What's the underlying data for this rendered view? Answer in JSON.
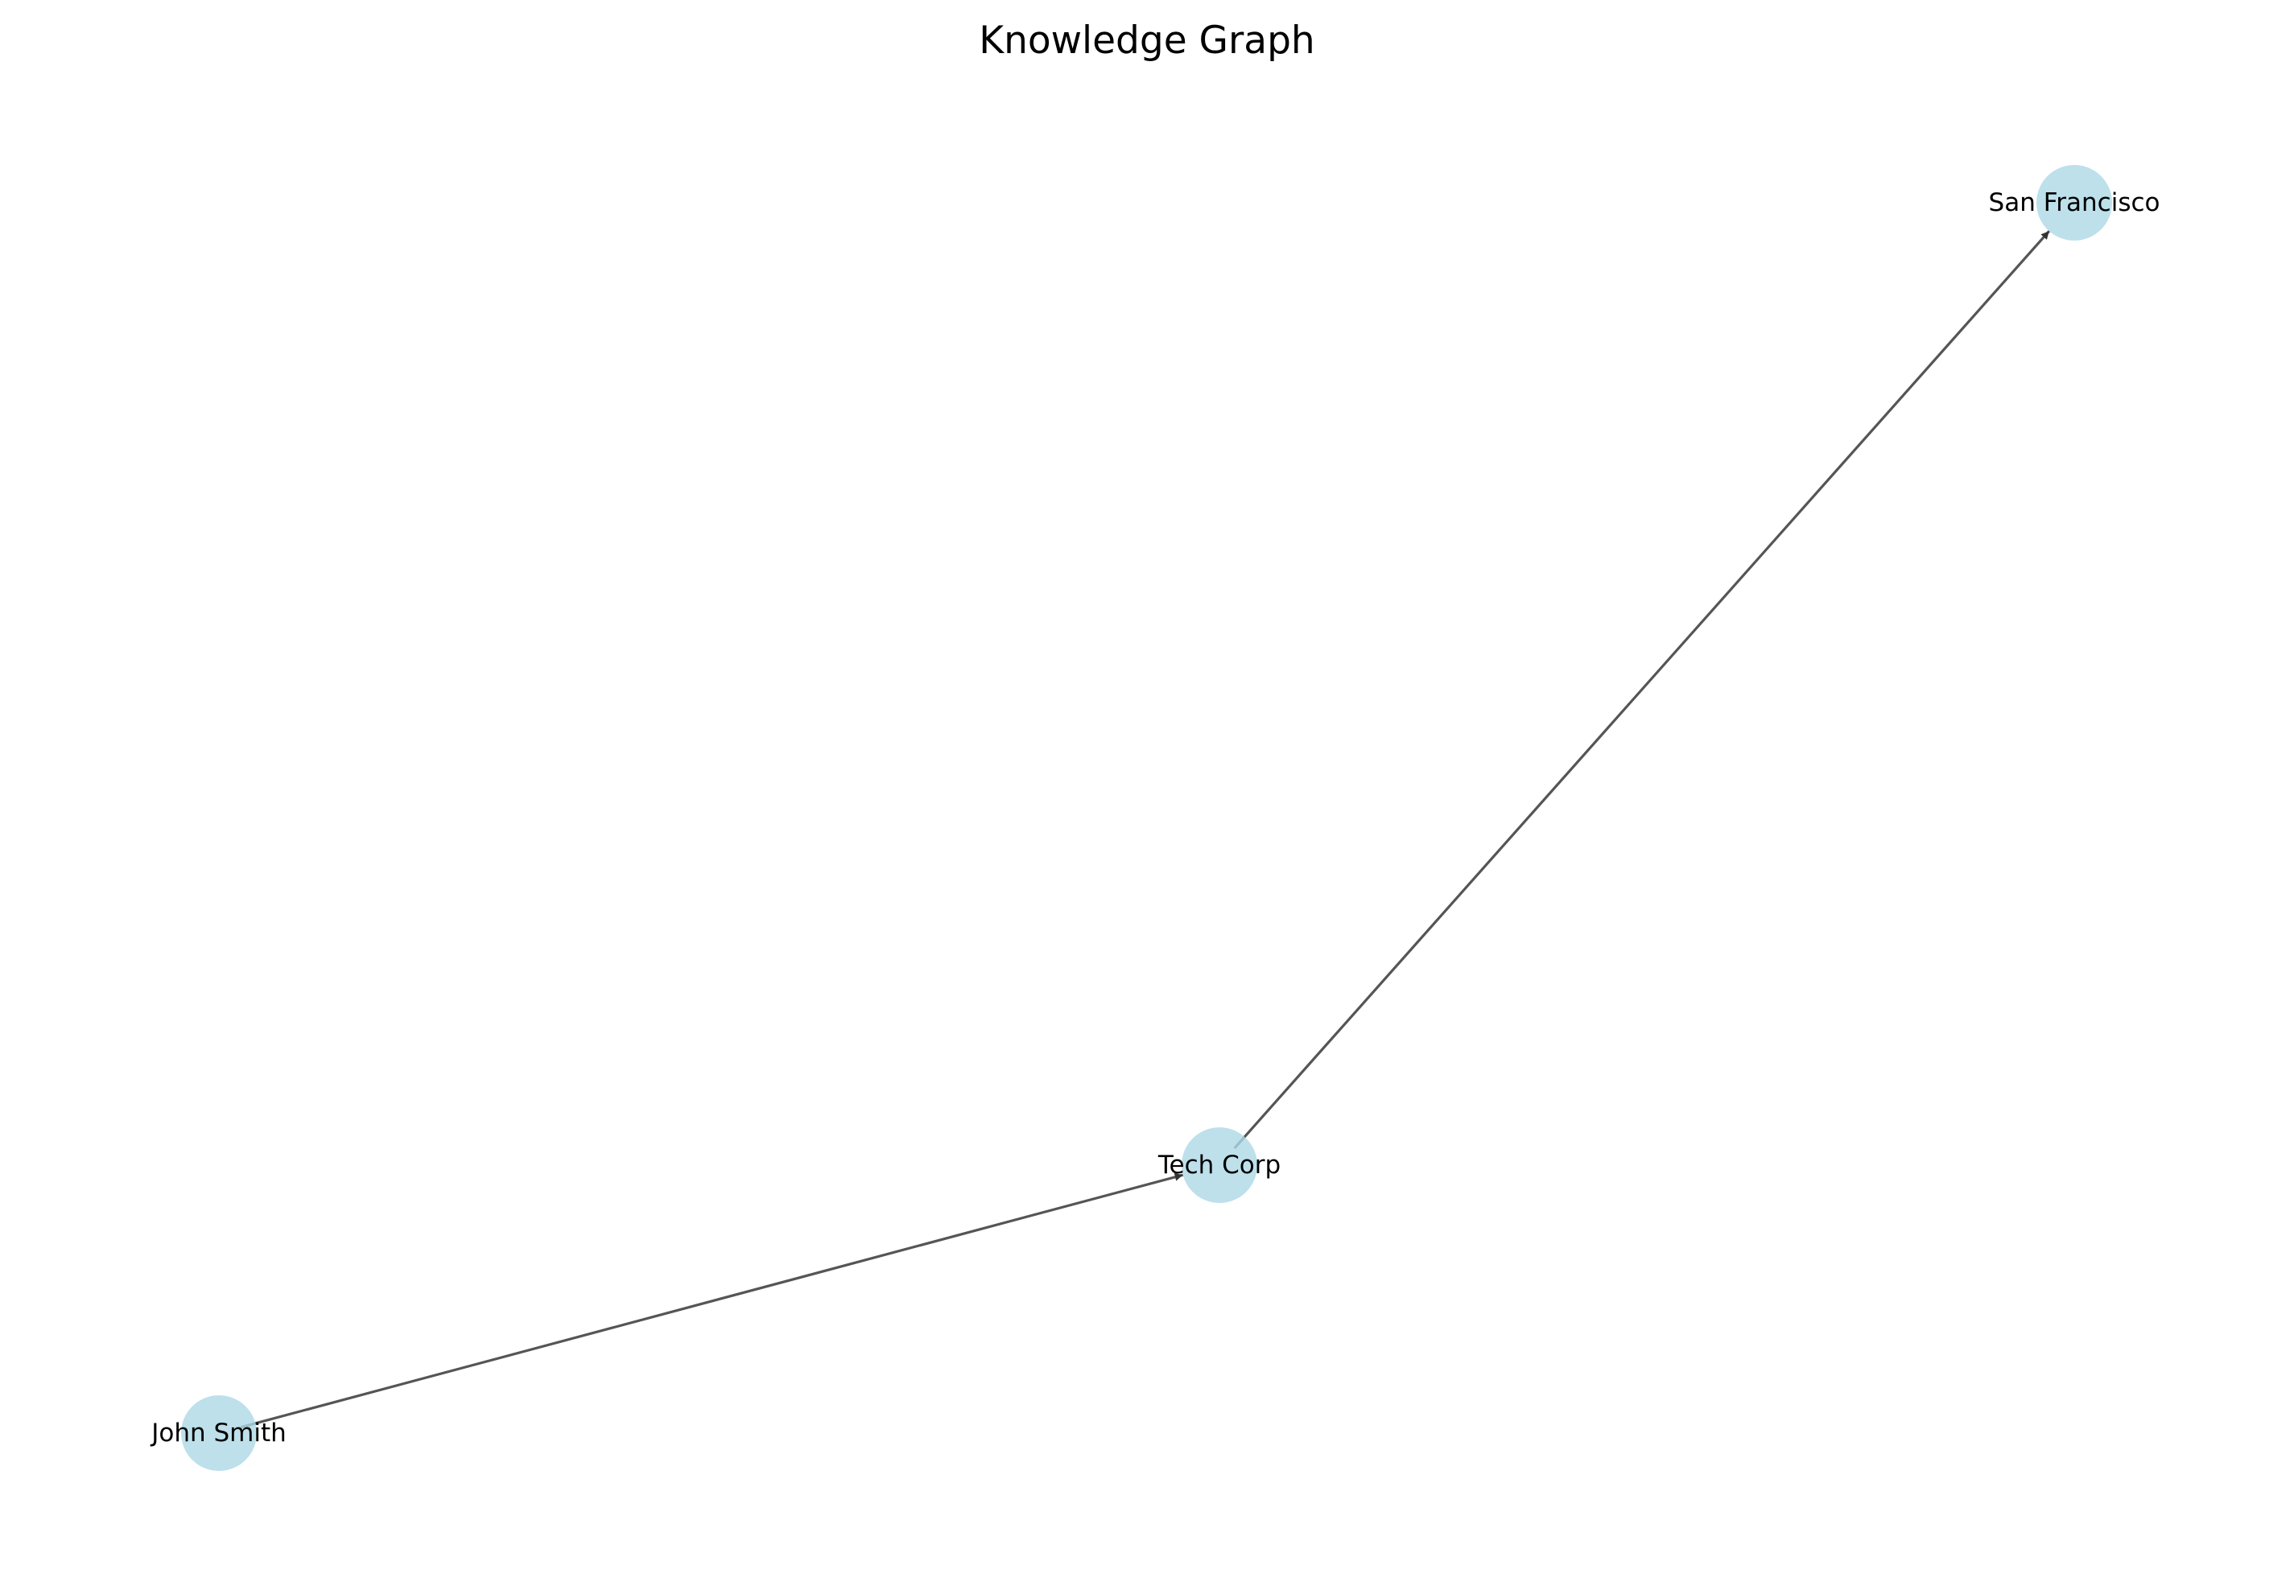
{
  "title": "Knowledge Graph",
  "colors": {
    "node_fill": "#ADD8E6",
    "edge": "#555555",
    "arrow_head": "#333333",
    "text": "#000000",
    "background": "#FFFFFF"
  },
  "nodes": [
    {
      "id": "john_smith",
      "label": "John Smith"
    },
    {
      "id": "tech_corp",
      "label": "Tech Corp"
    },
    {
      "id": "san_francisco",
      "label": "San Francisco"
    }
  ],
  "edges": [
    {
      "source": "john_smith",
      "target": "tech_corp",
      "directed": true
    },
    {
      "source": "tech_corp",
      "target": "san_francisco",
      "directed": true
    }
  ]
}
